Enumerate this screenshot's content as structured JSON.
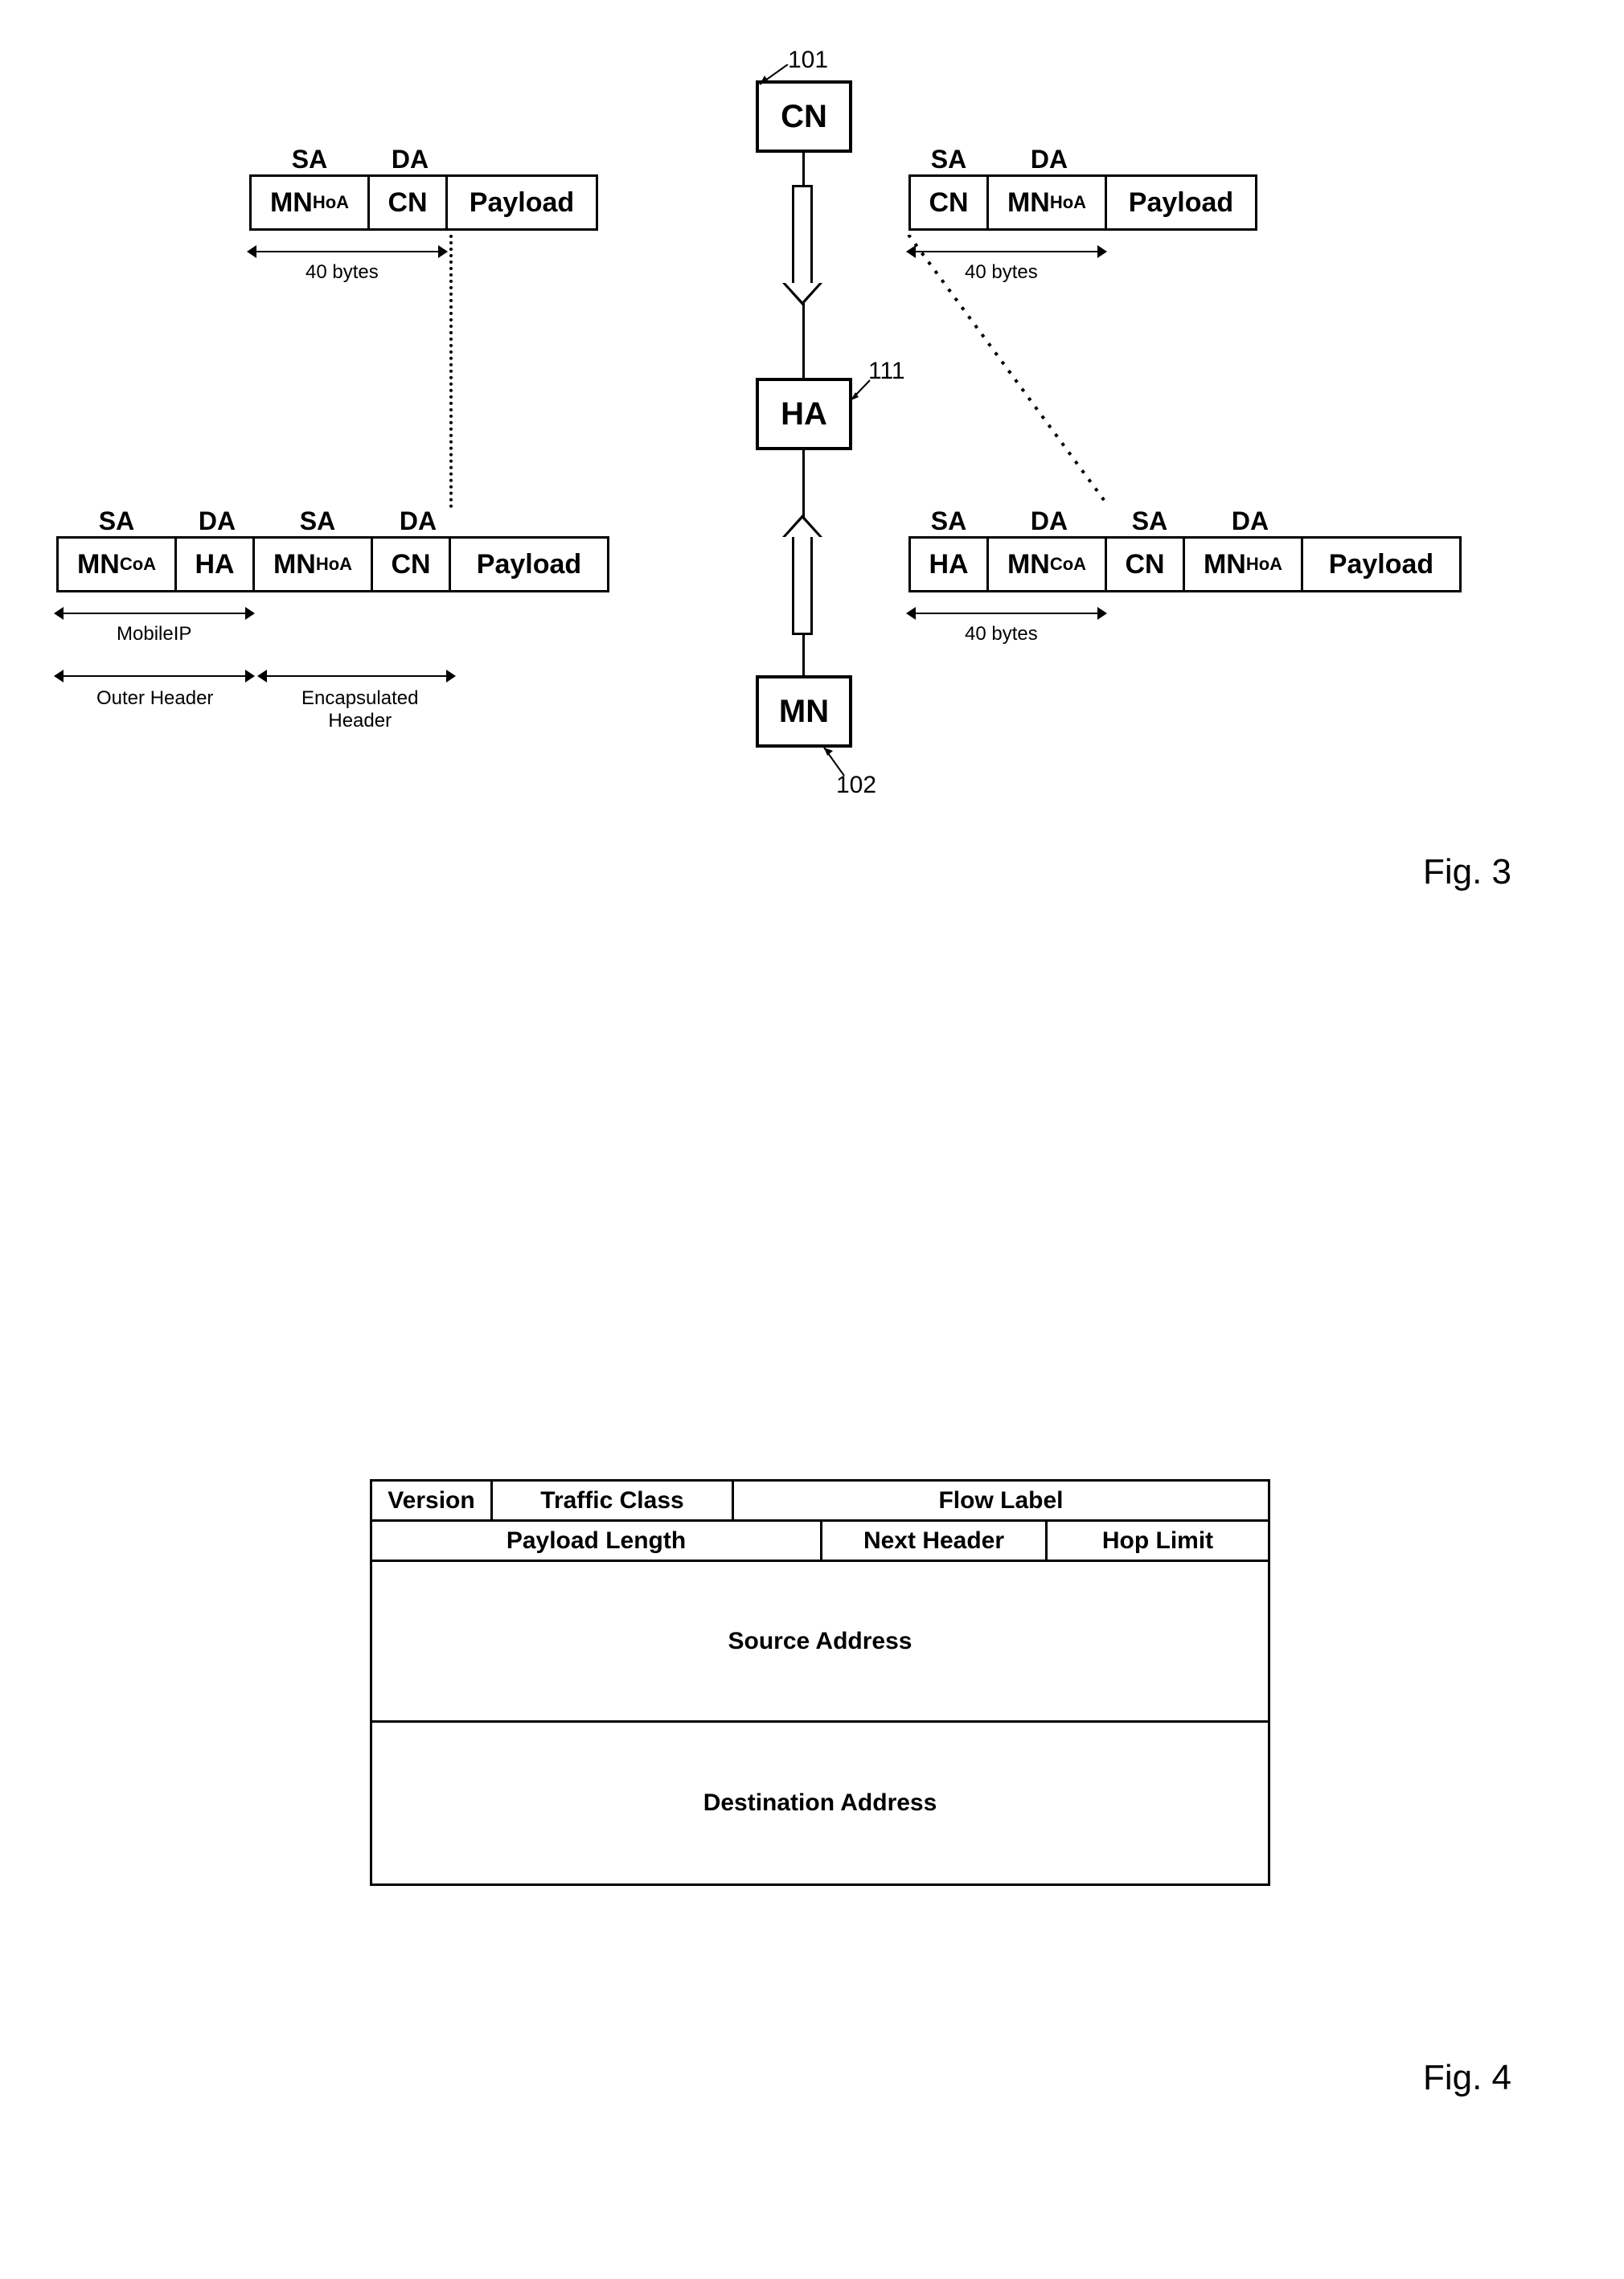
{
  "fig3": {
    "caption": "Fig. 3",
    "nodes": {
      "cn": {
        "label": "CN",
        "ref": "101"
      },
      "ha": {
        "label": "HA",
        "ref": "111"
      },
      "mn": {
        "label": "MN",
        "ref": "102"
      }
    },
    "sa_label": "SA",
    "da_label": "DA",
    "bytes40": "40 bytes",
    "mobileip": "MobileIP",
    "outer_header": "Outer Header",
    "encap_header": "Encapsulated\nHeader",
    "pkt_upper_left": {
      "sa": "MN<sub>HoA</sub>",
      "da": "CN",
      "payload": "Payload"
    },
    "pkt_upper_right": {
      "sa": "CN",
      "da": "MN<sub>HoA</sub>",
      "payload": "Payload"
    },
    "pkt_lower_left": {
      "outer_sa": "MN<sub>CoA</sub>",
      "outer_da": "HA",
      "inner_sa": "MN<sub>HoA</sub>",
      "inner_da": "CN",
      "payload": "Payload"
    },
    "pkt_lower_right": {
      "outer_sa": "HA",
      "outer_da": "MN<sub>CoA</sub>",
      "inner_sa": "CN",
      "inner_da": "MN<sub>HoA</sub>",
      "payload": "Payload"
    }
  },
  "fig4": {
    "caption": "Fig. 4",
    "row1": {
      "version": "Version",
      "tclass": "Traffic Class",
      "flow": "Flow Label"
    },
    "row2": {
      "plen": "Payload Length",
      "next": "Next Header",
      "hop": "Hop Limit"
    },
    "src": "Source Address",
    "dst": "Destination Address"
  },
  "colors": {
    "line": "#000000",
    "bg": "#ffffff"
  }
}
